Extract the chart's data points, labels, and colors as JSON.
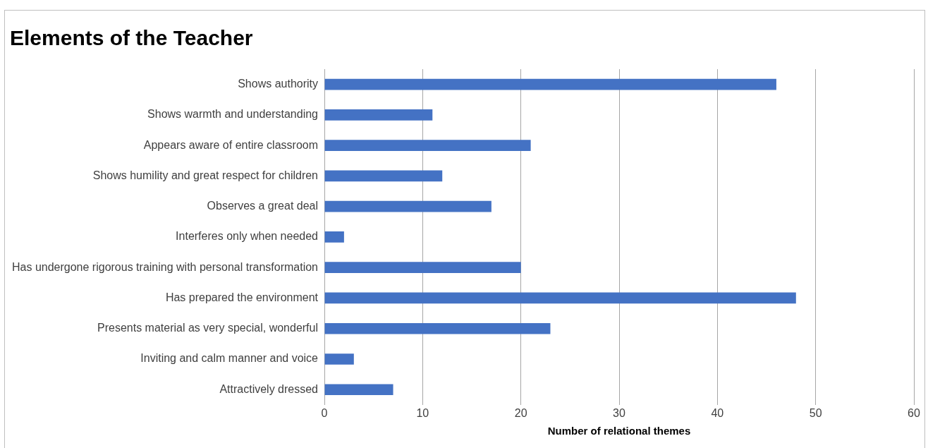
{
  "chart_data": {
    "type": "bar",
    "orientation": "horizontal",
    "title": "Elements of the Teacher",
    "xlabel": "Number of relational themes",
    "categories": [
      "Shows authority",
      "Shows warmth and understanding",
      "Appears aware of entire classroom",
      "Shows humility and great respect for children",
      "Observes a great deal",
      "Interferes only when needed",
      "Has undergone rigorous training with personal transformation",
      "Has prepared the environment",
      "Presents material as very special, wonderful",
      "Inviting and calm manner and voice",
      "Attractively dressed"
    ],
    "values": [
      46,
      11,
      21,
      12,
      17,
      2,
      20,
      48,
      23,
      3,
      7
    ],
    "color": "#4472c4",
    "xlim": [
      0,
      60
    ],
    "xticks": [
      0,
      10,
      20,
      30,
      40,
      50,
      60
    ],
    "grid": "x",
    "legend": false
  }
}
